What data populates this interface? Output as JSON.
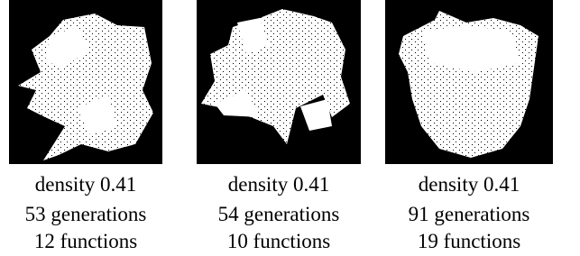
{
  "panels": [
    {
      "lines": [
        "density 0.41",
        "53 generations",
        "12 functions"
      ]
    },
    {
      "lines": [
        "density 0.41",
        "54 generations",
        "10 functions"
      ]
    },
    {
      "lines": [
        "density 0.41",
        "91 generations",
        "19 functions"
      ]
    }
  ]
}
